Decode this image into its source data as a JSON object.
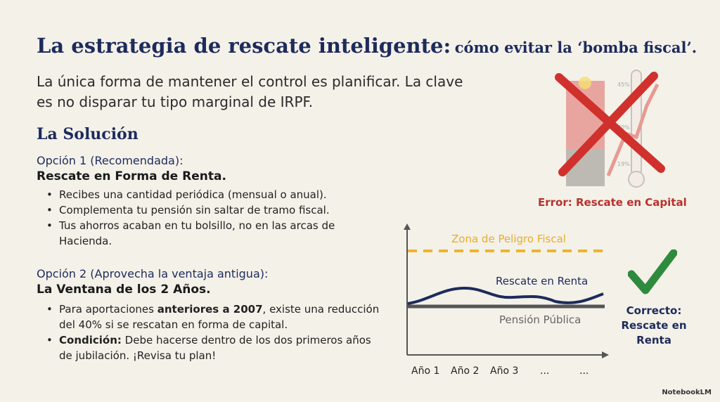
{
  "title": {
    "main": "La estrategia de rescate inteligente:",
    "sub": "cómo evitar la ‘bomba fiscal’."
  },
  "intro": "La única forma de mantener el control es planificar. La clave es no disparar tu tipo marginal de IRPF.",
  "solution_heading": "La Solución",
  "option1": {
    "label": "Opción 1 (Recomendada):",
    "heading": "Rescate en Forma de Renta.",
    "bullets": [
      "Recibes una cantidad periódica (mensual o anual).",
      "Complementa tu pensión sin saltar de tramo fiscal.",
      "Tus ahorros acaban en tu bolsillo, no en las arcas de Hacienda."
    ]
  },
  "option2": {
    "label": "Opción 2 (Aprovecha la ventaja antigua):",
    "heading": "La Ventana de los 2 Años.",
    "bullet1": {
      "pre": "Para aportaciones ",
      "bold": "anteriores a 2007",
      "post": ", existe una reducción del 40% si se rescatan en forma de capital."
    },
    "bullet2": {
      "bold": "Condición:",
      "post": " Debe hacerse dentro de los dos primeros años de jubilación. ¡Revisa tu plan!"
    }
  },
  "error_graphic": {
    "thermometer_labels": [
      "45%",
      "30%",
      "19%"
    ],
    "caption": "Error: Rescate en Capital",
    "icon": "red-x-icon",
    "color": "#c0392b"
  },
  "chart": {
    "danger_label": "Zona de Peligro Fiscal",
    "renta_label": "Rescate en Renta",
    "pension_label": "Pensión Pública",
    "x_labels": [
      "Año 1",
      "Año 2",
      "Año 3",
      "...",
      "..."
    ],
    "danger_color": "#f0b429",
    "renta_color": "#1d2b5c",
    "pension_color": "#555555"
  },
  "correct": {
    "icon": "check-icon",
    "line1": "Correcto:",
    "line2": "Rescate en Renta",
    "color": "#2e8b3e"
  },
  "footer": "NotebookLM"
}
